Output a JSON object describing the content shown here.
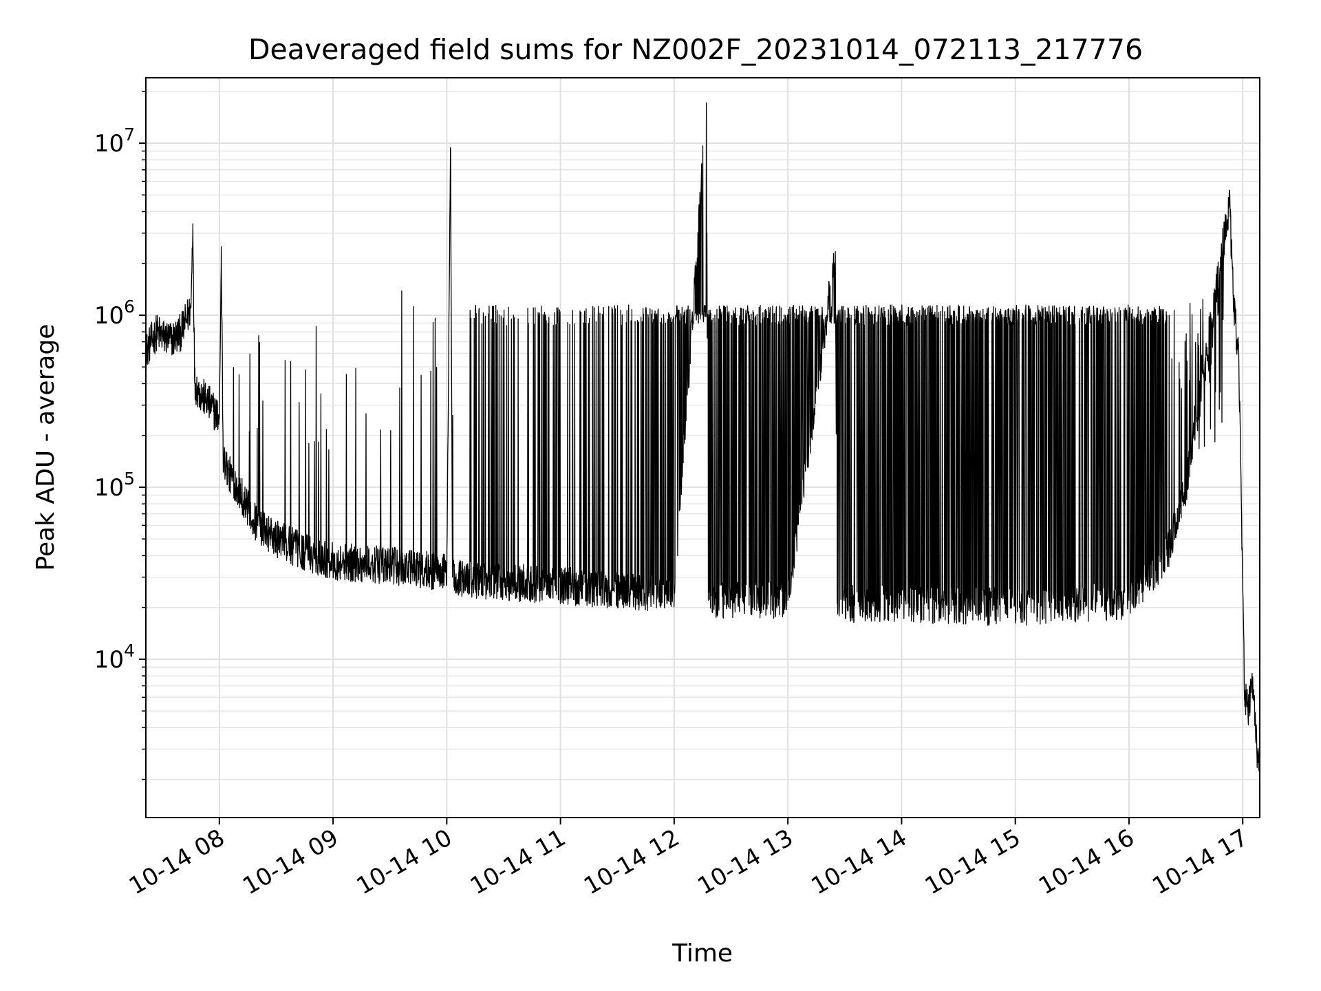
{
  "chart_data": {
    "type": "line",
    "title": "Deaveraged field sums for NZ002F_20231014_072113_217776",
    "xlabel": "Time",
    "ylabel": "Peak ADU - average",
    "yscale": "log",
    "ylim": [
      1200,
      24000000
    ],
    "xlim": [
      "2023-10-14 07:21:13",
      "2023-10-14 17:09:00"
    ],
    "grid": true,
    "x_ticks": [
      {
        "x": "2023-10-14 08:00",
        "label": "10-14 08"
      },
      {
        "x": "2023-10-14 09:00",
        "label": "10-14 09"
      },
      {
        "x": "2023-10-14 10:00",
        "label": "10-14 10"
      },
      {
        "x": "2023-10-14 11:00",
        "label": "10-14 11"
      },
      {
        "x": "2023-10-14 12:00",
        "label": "10-14 12"
      },
      {
        "x": "2023-10-14 13:00",
        "label": "10-14 13"
      },
      {
        "x": "2023-10-14 14:00",
        "label": "10-14 14"
      },
      {
        "x": "2023-10-14 15:00",
        "label": "10-14 15"
      },
      {
        "x": "2023-10-14 16:00",
        "label": "10-14 16"
      },
      {
        "x": "2023-10-14 17:00",
        "label": "10-14 17"
      }
    ],
    "y_ticks": [
      {
        "value": 10000,
        "base": "10",
        "exp": "4"
      },
      {
        "value": 100000,
        "base": "10",
        "exp": "5"
      },
      {
        "value": 1000000,
        "base": "10",
        "exp": "6"
      },
      {
        "value": 10000000,
        "base": "10",
        "exp": "7"
      }
    ],
    "series": [
      {
        "color": "#000000",
        "points": [
          [
            "2023-10-14 07:21",
            600000
          ],
          [
            "2023-10-14 07:24",
            700000
          ],
          [
            "2023-10-14 07:27",
            800000
          ],
          [
            "2023-10-14 07:30",
            750000
          ],
          [
            "2023-10-14 07:35",
            720000
          ],
          [
            "2023-10-14 07:40",
            800000
          ],
          [
            "2023-10-14 07:45",
            1100000
          ],
          [
            "2023-10-14 07:46",
            3400000
          ],
          [
            "2023-10-14 07:47",
            400000
          ],
          [
            "2023-10-14 07:50",
            350000
          ],
          [
            "2023-10-14 07:55",
            300000
          ],
          [
            "2023-10-14 08:00",
            250000
          ],
          [
            "2023-10-14 08:01",
            2500000
          ],
          [
            "2023-10-14 08:02",
            150000
          ],
          [
            "2023-10-14 08:05",
            120000
          ],
          [
            "2023-10-14 08:10",
            100000
          ],
          [
            "2023-10-14 08:15",
            75000
          ],
          [
            "2023-10-14 08:20",
            60000
          ],
          [
            "2023-10-14 08:30",
            50000
          ],
          [
            "2023-10-14 08:45",
            42000
          ],
          [
            "2023-10-14 09:00",
            37000
          ],
          [
            "2023-10-14 09:30",
            35000
          ],
          [
            "2023-10-14 10:00",
            32000
          ],
          [
            "2023-10-14 10:02",
            9000000
          ],
          [
            "2023-10-14 10:03",
            30000
          ],
          [
            "2023-10-14 10:30",
            28000
          ],
          [
            "2023-10-14 11:00",
            27000
          ],
          [
            "2023-10-14 11:30",
            25000
          ],
          [
            "2023-10-14 12:00",
            24000
          ],
          [
            "2023-10-14 12:17",
            15500000
          ],
          [
            "2023-10-14 12:18",
            22000
          ],
          [
            "2023-10-14 13:00",
            22000
          ],
          [
            "2023-10-14 13:25",
            2300000
          ],
          [
            "2023-10-14 13:26",
            21000
          ],
          [
            "2023-10-14 14:00",
            21000
          ],
          [
            "2023-10-14 15:00",
            20000
          ],
          [
            "2023-10-14 16:00",
            22000
          ],
          [
            "2023-10-14 16:20",
            40000
          ],
          [
            "2023-10-14 16:30",
            100000
          ],
          [
            "2023-10-14 16:40",
            500000
          ],
          [
            "2023-10-14 16:45",
            1200000
          ],
          [
            "2023-10-14 16:53",
            4500000
          ],
          [
            "2023-10-14 16:55",
            1300000
          ],
          [
            "2023-10-14 16:58",
            500000
          ],
          [
            "2023-10-14 17:00",
            30000
          ],
          [
            "2023-10-14 17:01",
            6000
          ],
          [
            "2023-10-14 17:03",
            5000
          ],
          [
            "2023-10-14 17:05",
            7000
          ],
          [
            "2023-10-14 17:07",
            4000
          ],
          [
            "2023-10-14 17:08",
            2500
          ]
        ]
      }
    ]
  }
}
